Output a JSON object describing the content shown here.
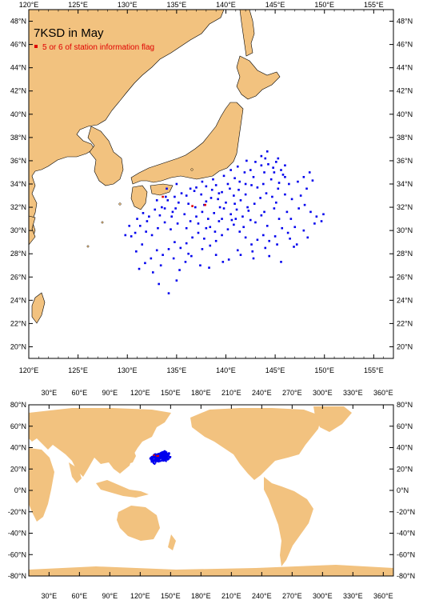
{
  "colors": {
    "land": "#f2c27f",
    "ocean": "#ffffff",
    "station": "#0000ee",
    "flag": "#e00000",
    "frame": "#000000"
  },
  "top_map": {
    "title": "7KSD in May",
    "legend_label": "5 or 6 of station information flag",
    "lon_range": [
      120,
      157
    ],
    "lat_range": [
      19,
      49
    ],
    "lon_labels": [
      "120°E",
      "125°E",
      "130°E",
      "135°E",
      "140°E",
      "145°E",
      "150°E",
      "155°E"
    ],
    "lat_labels": [
      "20°N",
      "22°N",
      "24°N",
      "26°N",
      "28°N",
      "30°N",
      "32°N",
      "34°N",
      "36°N",
      "38°N",
      "40°N",
      "42°N",
      "44°N",
      "46°N",
      "48°N"
    ]
  },
  "bottom_map": {
    "lon_range": [
      10,
      370
    ],
    "lat_range": [
      -80,
      80
    ],
    "lon_labels": [
      "30°E",
      "60°E",
      "90°E",
      "120°E",
      "150°E",
      "180°E",
      "210°E",
      "240°E",
      "270°E",
      "300°E",
      "330°E",
      "360°E"
    ],
    "lat_labels": [
      "80°N",
      "60°N",
      "40°N",
      "20°N",
      "0°N",
      "-20°N",
      "-40°N",
      "-60°N",
      "-80°N"
    ]
  },
  "chart_data": {
    "type": "scatter",
    "series": [
      {
        "name": "",
        "points": [
          [
            133.0,
            32.6
          ],
          [
            133.8,
            31.9
          ],
          [
            134.5,
            31.2
          ],
          [
            135.2,
            32.4
          ],
          [
            136.0,
            33.0
          ],
          [
            136.8,
            33.4
          ],
          [
            137.5,
            33.1
          ],
          [
            138.0,
            32.5
          ],
          [
            138.6,
            33.5
          ],
          [
            139.0,
            33.9
          ],
          [
            139.6,
            33.3
          ],
          [
            140.2,
            34.0
          ],
          [
            140.9,
            34.5
          ],
          [
            141.4,
            34.2
          ],
          [
            141.9,
            35.0
          ],
          [
            142.5,
            35.2
          ],
          [
            143.0,
            35.9
          ],
          [
            143.6,
            35.6
          ],
          [
            144.0,
            36.2
          ],
          [
            144.3,
            35.7
          ],
          [
            144.8,
            35.4
          ],
          [
            145.1,
            35.9
          ],
          [
            145.6,
            35.2
          ],
          [
            146.0,
            34.6
          ],
          [
            145.4,
            34.1
          ],
          [
            144.6,
            34.4
          ],
          [
            143.8,
            34.0
          ],
          [
            143.2,
            33.7
          ],
          [
            142.6,
            33.9
          ],
          [
            142.0,
            33.1
          ],
          [
            141.5,
            32.6
          ],
          [
            140.8,
            33.0
          ],
          [
            140.0,
            32.4
          ],
          [
            139.4,
            32.0
          ],
          [
            138.8,
            31.5
          ],
          [
            138.2,
            31.0
          ],
          [
            137.6,
            31.6
          ],
          [
            137.0,
            31.2
          ],
          [
            136.4,
            30.8
          ],
          [
            135.8,
            31.4
          ],
          [
            135.1,
            30.6
          ],
          [
            134.4,
            30.1
          ],
          [
            133.8,
            30.7
          ],
          [
            133.1,
            30.2
          ],
          [
            132.5,
            29.6
          ],
          [
            131.9,
            29.9
          ],
          [
            131.3,
            30.4
          ],
          [
            130.8,
            29.8
          ],
          [
            130.4,
            29.5
          ],
          [
            131.0,
            31.0
          ],
          [
            131.6,
            31.5
          ],
          [
            132.2,
            31.2
          ],
          [
            132.8,
            31.8
          ],
          [
            133.5,
            32.0
          ],
          [
            134.1,
            32.6
          ],
          [
            134.8,
            32.9
          ],
          [
            135.5,
            33.2
          ],
          [
            136.2,
            32.3
          ],
          [
            136.9,
            32.0
          ],
          [
            137.8,
            32.2
          ],
          [
            138.5,
            32.8
          ],
          [
            139.2,
            32.7
          ],
          [
            139.8,
            31.9
          ],
          [
            140.5,
            31.4
          ],
          [
            141.1,
            31.8
          ],
          [
            141.7,
            31.2
          ],
          [
            142.3,
            31.7
          ],
          [
            142.9,
            32.3
          ],
          [
            143.5,
            32.8
          ],
          [
            144.1,
            33.2
          ],
          [
            144.7,
            32.9
          ],
          [
            145.3,
            33.6
          ],
          [
            146.0,
            33.1
          ],
          [
            146.7,
            32.7
          ],
          [
            147.3,
            34.2
          ],
          [
            147.9,
            34.6
          ],
          [
            148.5,
            35.0
          ],
          [
            148.8,
            34.3
          ],
          [
            148.2,
            33.6
          ],
          [
            147.6,
            33.0
          ],
          [
            148.0,
            32.2
          ],
          [
            148.6,
            31.6
          ],
          [
            149.2,
            31.2
          ],
          [
            149.7,
            30.8
          ],
          [
            149.9,
            31.4
          ],
          [
            147.0,
            30.3
          ],
          [
            146.3,
            29.8
          ],
          [
            145.7,
            30.2
          ],
          [
            145.0,
            29.5
          ],
          [
            144.4,
            29.1
          ],
          [
            143.8,
            29.6
          ],
          [
            143.2,
            29.2
          ],
          [
            142.6,
            28.8
          ],
          [
            142.0,
            29.4
          ],
          [
            141.4,
            29.9
          ],
          [
            140.8,
            30.5
          ],
          [
            140.2,
            30.1
          ],
          [
            139.6,
            29.6
          ],
          [
            139.0,
            29.1
          ],
          [
            138.4,
            28.7
          ],
          [
            137.8,
            29.3
          ],
          [
            137.2,
            29.8
          ],
          [
            136.6,
            29.4
          ],
          [
            136.0,
            28.9
          ],
          [
            135.4,
            28.5
          ],
          [
            134.8,
            29.0
          ],
          [
            134.2,
            28.4
          ],
          [
            133.6,
            27.9
          ],
          [
            133.0,
            28.3
          ],
          [
            132.4,
            27.6
          ],
          [
            131.8,
            27.2
          ],
          [
            131.2,
            26.7
          ],
          [
            136.5,
            27.8
          ],
          [
            135.9,
            27.3
          ],
          [
            135.3,
            26.6
          ],
          [
            135.0,
            25.7
          ],
          [
            133.2,
            25.4
          ],
          [
            134.2,
            24.6
          ],
          [
            137.4,
            27.0
          ],
          [
            139.0,
            27.9
          ],
          [
            140.3,
            27.5
          ],
          [
            141.5,
            27.9
          ],
          [
            142.8,
            27.6
          ],
          [
            144.4,
            27.8
          ],
          [
            145.6,
            27.3
          ],
          [
            146.9,
            28.6
          ],
          [
            138.0,
            30.2
          ],
          [
            139.3,
            30.8
          ],
          [
            140.6,
            30.9
          ],
          [
            141.8,
            30.3
          ],
          [
            143.0,
            30.7
          ],
          [
            144.2,
            30.4
          ],
          [
            145.4,
            31.0
          ],
          [
            146.2,
            31.6
          ],
          [
            144.9,
            31.9
          ],
          [
            143.6,
            31.3
          ],
          [
            142.2,
            32.0
          ],
          [
            140.9,
            32.3
          ],
          [
            139.6,
            31.0
          ],
          [
            138.4,
            30.3
          ],
          [
            137.2,
            30.6
          ],
          [
            136.0,
            30.2
          ],
          [
            134.9,
            31.9
          ],
          [
            133.9,
            32.9
          ],
          [
            141.3,
            33.5
          ],
          [
            142.8,
            34.6
          ],
          [
            143.9,
            35.0
          ],
          [
            144.9,
            35.0
          ],
          [
            145.8,
            34.8
          ],
          [
            146.4,
            34.0
          ],
          [
            142.0,
            34.0
          ],
          [
            140.4,
            33.6
          ],
          [
            139.3,
            33.2
          ],
          [
            138.0,
            33.8
          ],
          [
            137.0,
            33.7
          ],
          [
            136.4,
            33.6
          ],
          [
            135.0,
            34.0
          ],
          [
            134.0,
            33.6
          ],
          [
            141.0,
            31.0
          ],
          [
            142.5,
            30.9
          ],
          [
            143.9,
            31.6
          ],
          [
            145.1,
            32.4
          ],
          [
            146.6,
            31.0
          ],
          [
            147.4,
            31.9
          ],
          [
            146.0,
            35.6
          ],
          [
            145.3,
            36.2
          ],
          [
            144.2,
            36.8
          ],
          [
            143.6,
            36.4
          ],
          [
            142.1,
            36.0
          ],
          [
            141.2,
            35.5
          ],
          [
            140.5,
            35.2
          ],
          [
            139.8,
            34.7
          ],
          [
            138.7,
            34.4
          ],
          [
            137.6,
            34.2
          ],
          [
            138.9,
            29.9
          ],
          [
            137.6,
            28.4
          ],
          [
            136.2,
            28.0
          ],
          [
            134.7,
            27.6
          ],
          [
            133.4,
            27.0
          ],
          [
            132.6,
            26.4
          ],
          [
            138.3,
            26.8
          ],
          [
            139.7,
            27.3
          ],
          [
            141.2,
            28.3
          ],
          [
            142.7,
            28.2
          ],
          [
            144.0,
            28.5
          ],
          [
            145.2,
            28.8
          ],
          [
            146.5,
            29.3
          ],
          [
            147.9,
            30.0
          ],
          [
            149.0,
            30.6
          ],
          [
            148.3,
            29.4
          ],
          [
            147.2,
            28.8
          ],
          [
            131.5,
            28.8
          ],
          [
            130.9,
            28.2
          ],
          [
            130.2,
            30.4
          ],
          [
            129.8,
            29.6
          ],
          [
            132.0,
            30.8
          ],
          [
            133.3,
            31.3
          ],
          [
            134.6,
            31.6
          ]
        ]
      },
      {
        "name": "5 or 6 of station information flag",
        "points": [
          [
            136.6,
            32.1
          ],
          [
            137.9,
            32.2
          ],
          [
            133.6,
            32.9
          ]
        ]
      }
    ]
  }
}
